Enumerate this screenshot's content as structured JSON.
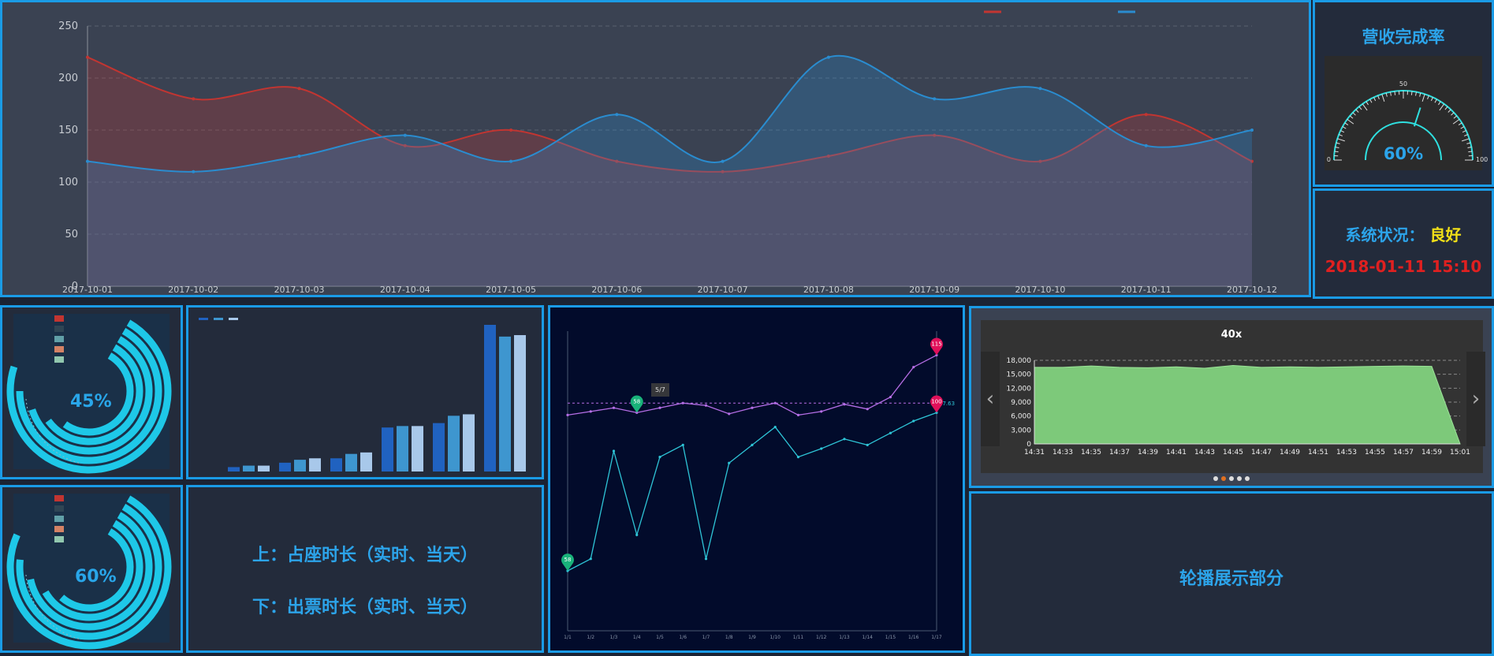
{
  "colors": {
    "accent": "#1a9be6",
    "series_red": "#c23531",
    "series_blue": "#2a8ccf",
    "good": "#f2e018",
    "alert": "#e02020",
    "gauge": "#2fe0e0"
  },
  "area_chart": {
    "chart_data": {
      "type": "area",
      "x": [
        "2017-10-01",
        "2017-10-02",
        "2017-10-03",
        "2017-10-04",
        "2017-10-05",
        "2017-10-06",
        "2017-10-07",
        "2017-10-08",
        "2017-10-09",
        "2017-10-10",
        "2017-10-11",
        "2017-10-12"
      ],
      "series": [
        {
          "values": [
            220,
            180,
            190,
            135,
            150,
            120,
            110,
            125,
            145,
            120,
            165,
            120
          ]
        },
        {
          "values": [
            120,
            110,
            125,
            145,
            120,
            165,
            120,
            220,
            180,
            190,
            135,
            150
          ]
        }
      ],
      "ylim": [
        0,
        250
      ],
      "yticks": [
        "250",
        "200",
        "150",
        "100",
        "50",
        "0"
      ],
      "grid": true
    }
  },
  "gauge": {
    "title": "营收完成率",
    "value": "60%",
    "percent": 60,
    "ticks": [
      "0",
      "50",
      "100"
    ]
  },
  "status": {
    "label": "系统状况：",
    "value": "良好",
    "datetime": "2018-01-11 15:10"
  },
  "rings": [
    {
      "value": "45%",
      "percent": 45,
      "legend_count": 5
    },
    {
      "value": "60%",
      "percent": 60,
      "legend_count": 5
    }
  ],
  "bar_chart": {
    "chart_data": {
      "type": "bar",
      "groups": 6,
      "series": [
        {
          "values": [
            3,
            6,
            9,
            30,
            33,
            100
          ]
        },
        {
          "values": [
            4,
            8,
            12,
            31,
            38,
            92
          ]
        },
        {
          "values": [
            4,
            9,
            13,
            31,
            39,
            93
          ]
        }
      ]
    }
  },
  "text_panel": {
    "line1": "上：占座时长（实时、当天）",
    "line2": "下：出票时长（实时、当天）"
  },
  "line_chart": {
    "chart_data": {
      "type": "line",
      "x": [
        "1/1",
        "1/2",
        "1/3",
        "1/4",
        "1/5",
        "1/6",
        "1/7",
        "1/8",
        "1/9",
        "1/10",
        "1/11",
        "1/12",
        "1/13",
        "1/14",
        "1/15",
        "1/16",
        "1/17"
      ],
      "series": [
        {
          "values": [
            430,
            433,
            436,
            432,
            436,
            440,
            438,
            431,
            436,
            440,
            430,
            433,
            439,
            435,
            445,
            470,
            480
          ]
        },
        {
          "values": [
            300,
            310,
            400,
            330,
            395,
            405,
            310,
            390,
            405,
            420,
            395,
            402,
            410,
            405,
            415,
            425,
            432
          ]
        }
      ],
      "ylim": [
        250,
        500
      ],
      "tooltip_title": "5/7",
      "marker_start": "58",
      "marker_mid": "58",
      "marker_max": "115",
      "marker_end": "100",
      "avg_label": "97.63"
    }
  },
  "history_chart": {
    "chart_data": {
      "type": "area",
      "title": "40x",
      "x": [
        "14:31",
        "14:33",
        "14:35",
        "14:37",
        "14:39",
        "14:41",
        "14:43",
        "14:45",
        "14:47",
        "14:49",
        "14:51",
        "14:53",
        "14:55",
        "14:57",
        "14:59",
        "15:01"
      ],
      "values": [
        16500,
        16500,
        16800,
        16500,
        16400,
        16600,
        16300,
        16900,
        16500,
        16600,
        16500,
        16600,
        16700,
        16800,
        16700,
        0
      ],
      "ylim": [
        0,
        18000
      ],
      "yticks": [
        "18,000",
        "15,000",
        "12,000",
        "9,000",
        "6,000",
        "3,000",
        "0"
      ],
      "grid": true
    },
    "prev_arrow": "‹",
    "next_arrow": "›",
    "dots": 5
  },
  "carousel": {
    "text": "轮播展示部分"
  }
}
